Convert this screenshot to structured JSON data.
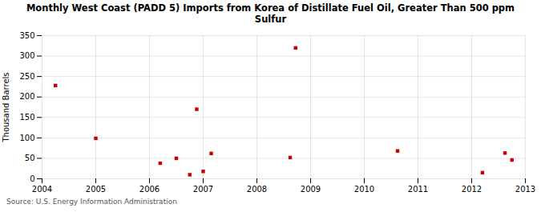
{
  "chart_data": {
    "type": "scatter",
    "title": "Monthly West Coast (PADD 5) Imports from Korea of Distillate Fuel Oil, Greater Than 500 ppm\nSulfur",
    "ylabel": "Thousand Barrels",
    "source": "Source: U.S. Energy Information Administration",
    "x": [
      2004.25,
      2005.0,
      2006.2,
      2006.5,
      2006.75,
      2006.88,
      2007.0,
      2007.15,
      2008.62,
      2008.72,
      2010.62,
      2012.2,
      2012.62,
      2012.75
    ],
    "values": [
      228,
      99,
      38,
      50,
      10,
      170,
      18,
      62,
      52,
      320,
      68,
      15,
      63,
      46
    ],
    "color": "#cc0000",
    "marker": "square",
    "xlim": [
      2004.0,
      2013.0
    ],
    "ylim": [
      0,
      350
    ],
    "xticks": [
      2004,
      2005,
      2006,
      2007,
      2008,
      2009,
      2010,
      2011,
      2012,
      2013
    ],
    "yticks": [
      0,
      50,
      100,
      150,
      200,
      250,
      300,
      350
    ],
    "grid": true
  }
}
